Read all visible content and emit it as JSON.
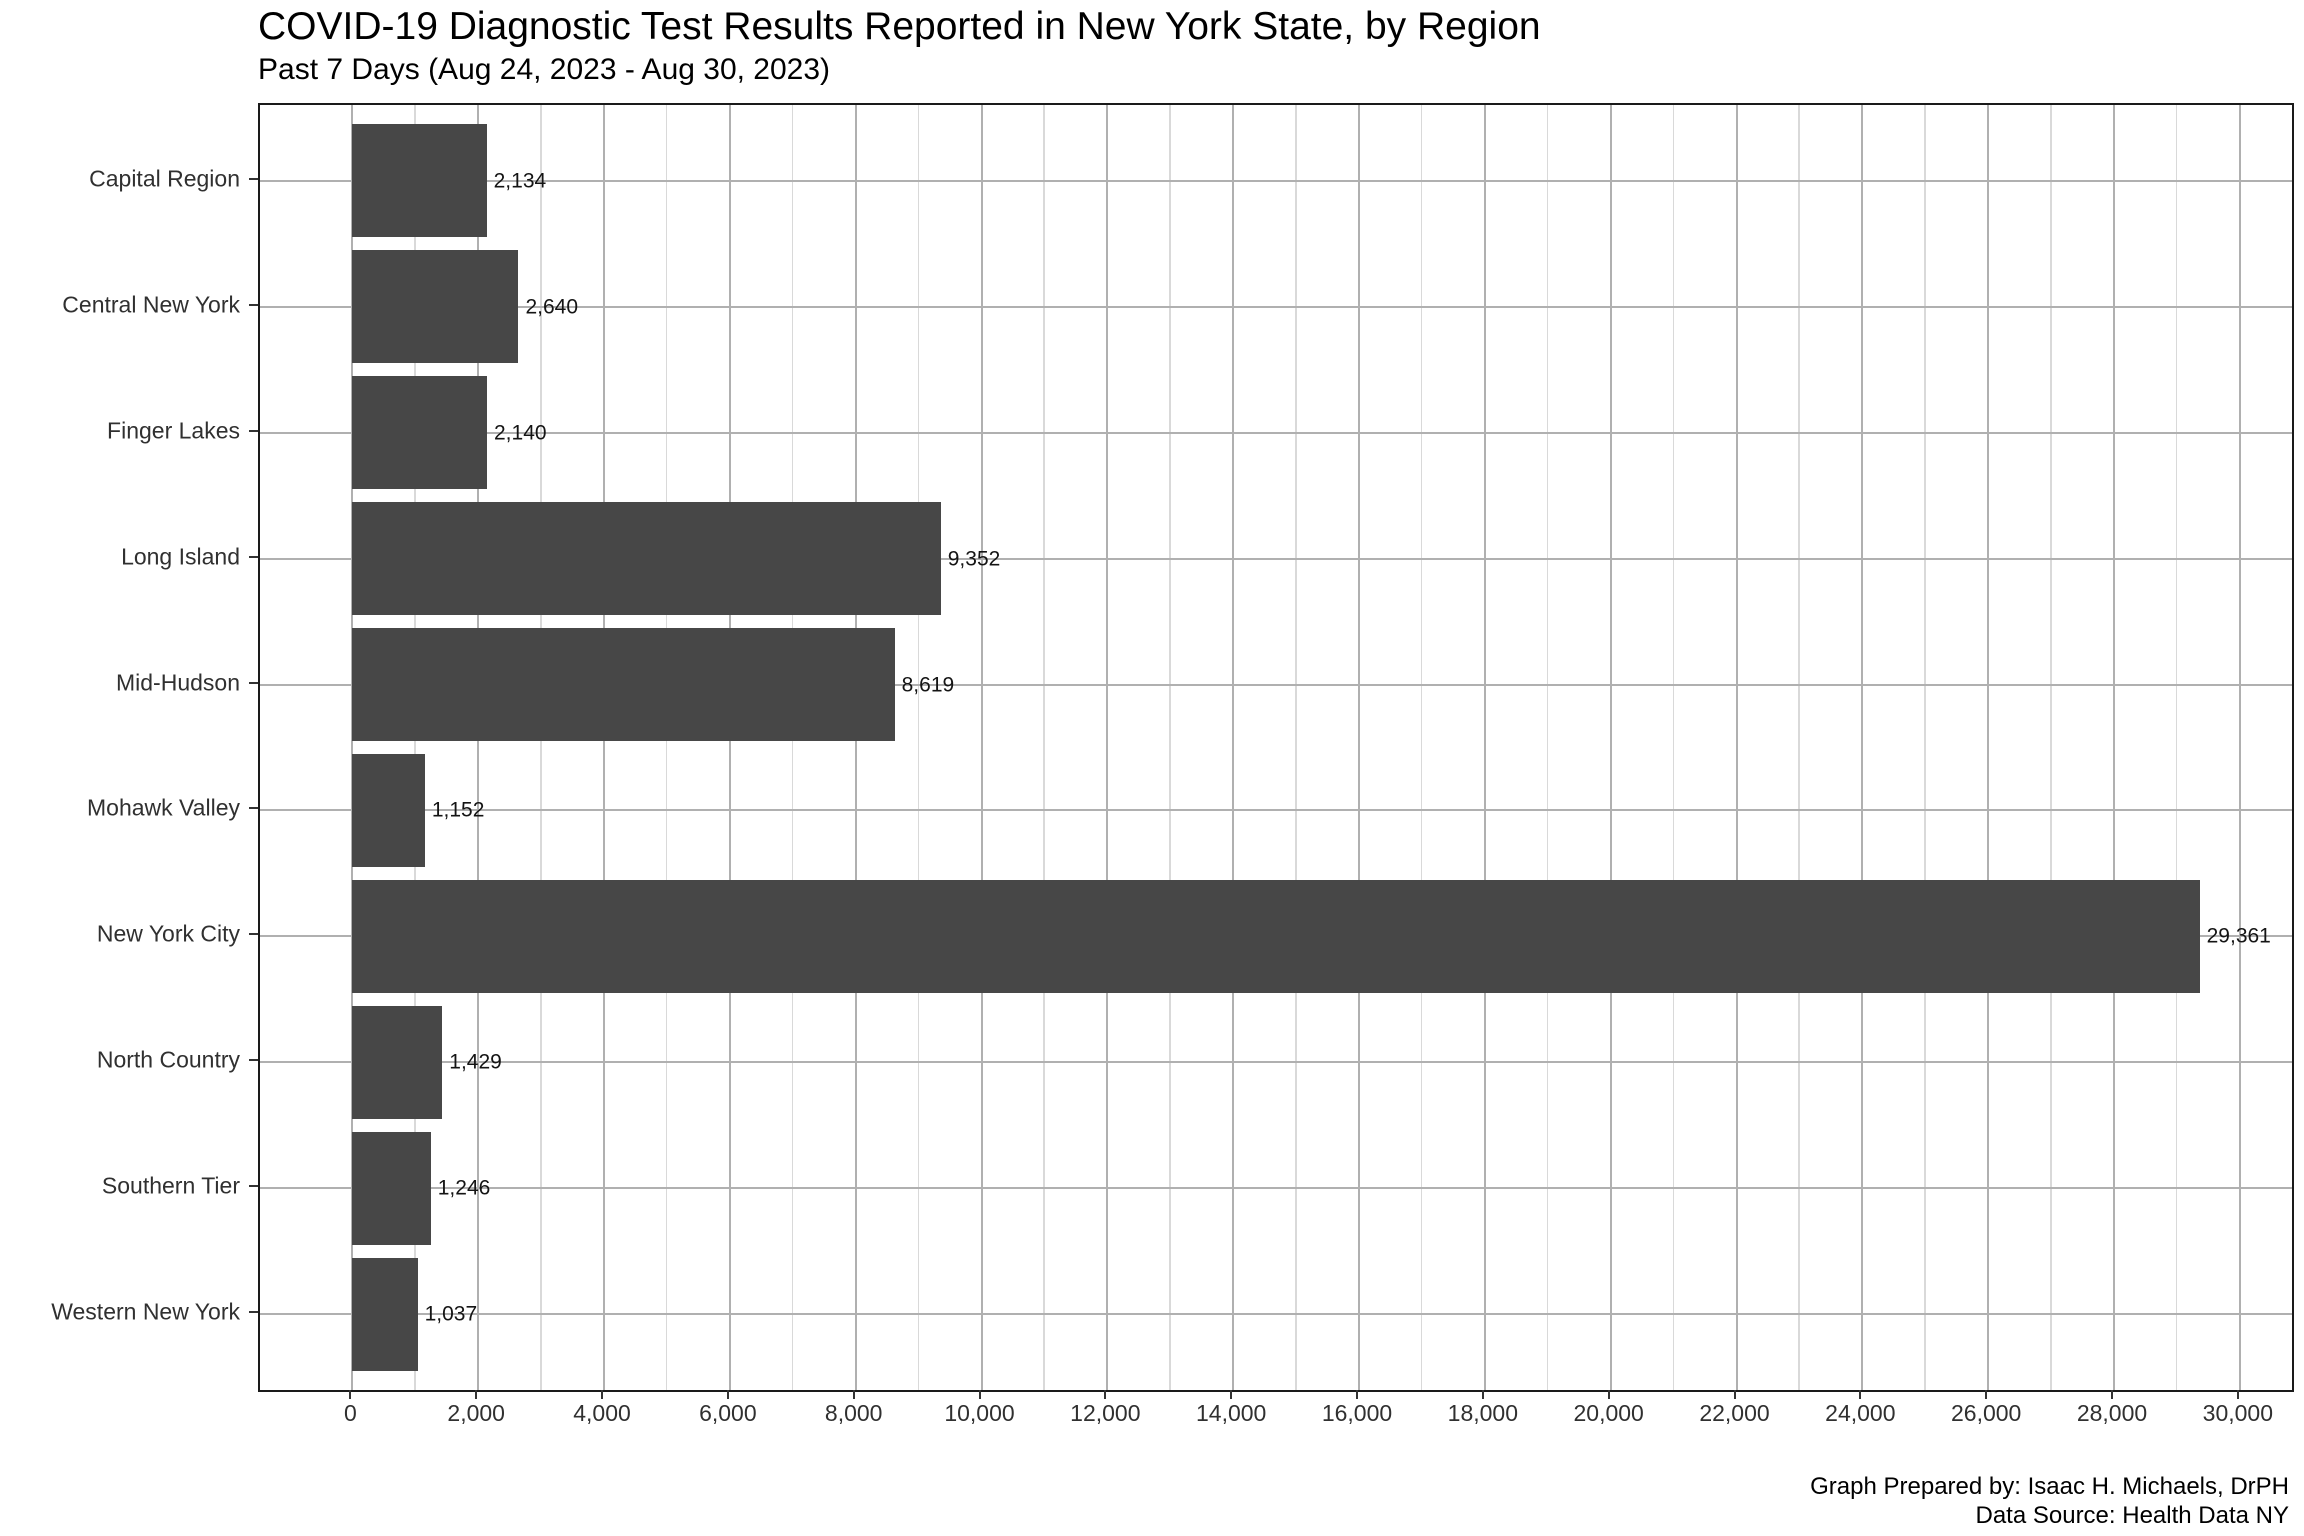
{
  "header": {
    "title": "COVID-19 Diagnostic Test Results Reported in New York State, by Region",
    "subtitle": "Past 7 Days (Aug 24, 2023 - Aug 30, 2023)"
  },
  "footer": {
    "caption_line1": "Graph Prepared by: Isaac H. Michaels, DrPH",
    "caption_line2": "Data Source: Health Data NY"
  },
  "chart_data": {
    "type": "bar",
    "orientation": "horizontal",
    "title": "COVID-19 Diagnostic Test Results Reported in New York State, by Region",
    "subtitle": "Past 7 Days (Aug 24, 2023 - Aug 30, 2023)",
    "xlabel": "",
    "ylabel": "",
    "categories": [
      "Capital Region",
      "Central New York",
      "Finger Lakes",
      "Long Island",
      "Mid-Hudson",
      "Mohawk Valley",
      "New York City",
      "North Country",
      "Southern Tier",
      "Western New York"
    ],
    "values": [
      2134,
      2640,
      2140,
      9352,
      8619,
      1152,
      29361,
      1429,
      1246,
      1037
    ],
    "value_labels": [
      "2,134",
      "2,640",
      "2,140",
      "9,352",
      "8,619",
      "1,152",
      "29,361",
      "1,429",
      "1,246",
      "1,037"
    ],
    "xlim": [
      0,
      30000
    ],
    "x_tick_step": 2000,
    "x_ticks": [
      {
        "value": 0,
        "label": "0"
      },
      {
        "value": 2000,
        "label": "2,000"
      },
      {
        "value": 4000,
        "label": "4,000"
      },
      {
        "value": 6000,
        "label": "6,000"
      },
      {
        "value": 8000,
        "label": "8,000"
      },
      {
        "value": 10000,
        "label": "10,000"
      },
      {
        "value": 12000,
        "label": "12,000"
      },
      {
        "value": 14000,
        "label": "14,000"
      },
      {
        "value": 16000,
        "label": "16,000"
      },
      {
        "value": 18000,
        "label": "18,000"
      },
      {
        "value": 20000,
        "label": "20,000"
      },
      {
        "value": 22000,
        "label": "22,000"
      },
      {
        "value": 24000,
        "label": "24,000"
      },
      {
        "value": 26000,
        "label": "26,000"
      },
      {
        "value": 28000,
        "label": "28,000"
      },
      {
        "value": 30000,
        "label": "30,000"
      }
    ],
    "grid": {
      "major_color": "#b0b0b0",
      "minor_color": "#d9d9d9",
      "minor_interval": 1000
    },
    "bar_color": "#474747",
    "panel_border_color": "#1a1a1a",
    "background_color": "#ffffff"
  }
}
